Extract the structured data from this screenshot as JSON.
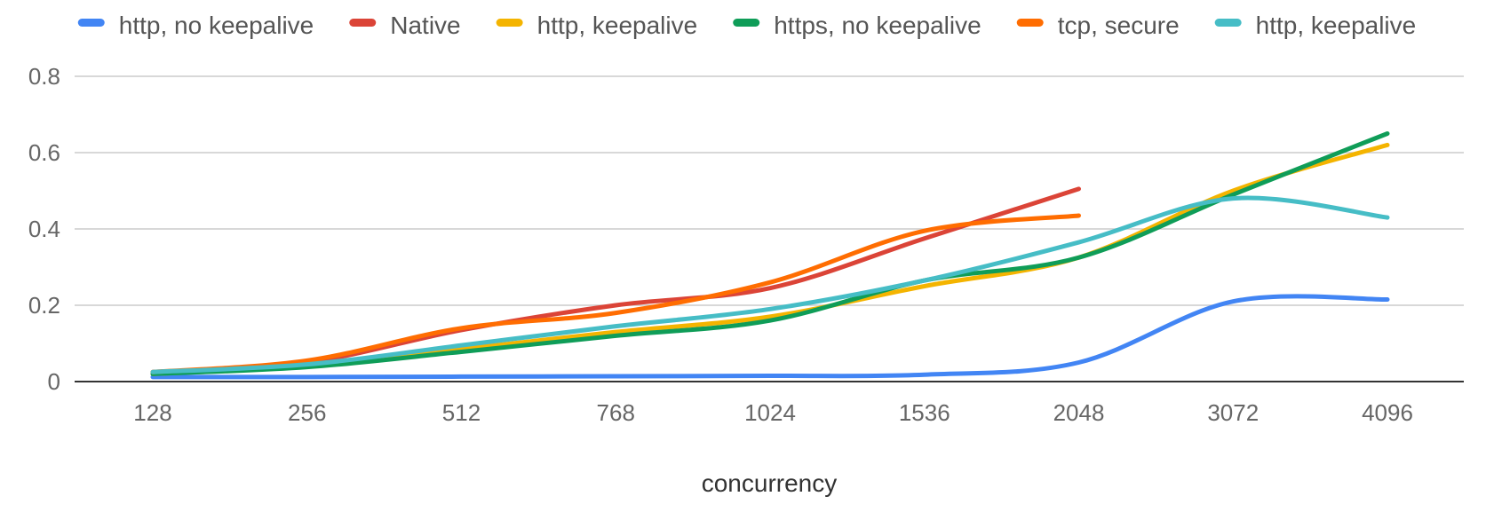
{
  "chart_data": {
    "type": "line",
    "xlabel": "concurrency",
    "ylabel": "",
    "categories": [
      "128",
      "256",
      "512",
      "768",
      "1024",
      "1536",
      "2048",
      "3072",
      "4096"
    ],
    "ylim": [
      0,
      0.8
    ],
    "yticks": [
      0,
      0.2,
      0.4,
      0.6,
      0.8
    ],
    "ytick_labels": [
      "0",
      "0.2",
      "0.4",
      "0.6",
      "0.8"
    ],
    "grid": true,
    "legend": "top",
    "smooth": true,
    "series": [
      {
        "name": "http, no keepalive",
        "color": "#4285f4",
        "values": [
          0.012,
          0.012,
          0.013,
          0.014,
          0.015,
          0.018,
          0.05,
          0.21,
          0.215
        ]
      },
      {
        "name": "Native",
        "color": "#db4437",
        "values": [
          0.025,
          0.05,
          0.135,
          0.2,
          0.245,
          0.375,
          0.505,
          null,
          null
        ]
      },
      {
        "name": "http, keepalive",
        "color": "#f4b400",
        "values": [
          0.02,
          0.04,
          0.085,
          0.13,
          0.17,
          0.25,
          0.325,
          0.5,
          0.62
        ]
      },
      {
        "name": "https, no keepalive",
        "color": "#0f9d58",
        "values": [
          0.02,
          0.038,
          0.078,
          0.12,
          0.16,
          0.265,
          0.325,
          0.49,
          0.65
        ]
      },
      {
        "name": "tcp, secure",
        "color": "#ff6d01",
        "values": [
          0.025,
          0.055,
          0.14,
          0.18,
          0.26,
          0.395,
          0.435,
          null,
          null
        ]
      },
      {
        "name": "http, keepalive",
        "color": "#46bdc6",
        "values": [
          0.025,
          0.045,
          0.095,
          0.145,
          0.19,
          0.265,
          0.365,
          0.48,
          0.43
        ]
      }
    ]
  }
}
